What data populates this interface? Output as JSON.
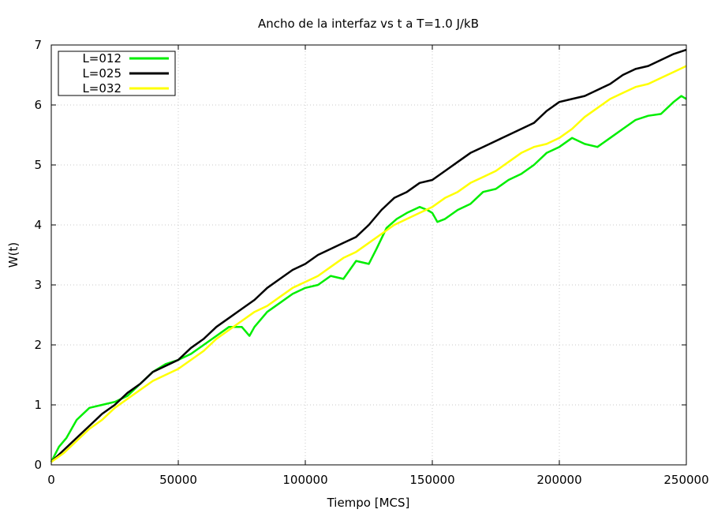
{
  "chart_data": {
    "type": "line",
    "title": "Ancho de la interfaz vs t a T=1.0 J/kB",
    "xlabel": "Tiempo [MCS]",
    "ylabel": "W(t)",
    "xlim": [
      0,
      250000
    ],
    "ylim": [
      0,
      7
    ],
    "x_ticks": [
      0,
      50000,
      100000,
      150000,
      200000,
      250000
    ],
    "x_tick_labels": [
      "0",
      "50000",
      "100000",
      "150000",
      "200000",
      "250000"
    ],
    "y_ticks": [
      0,
      1,
      2,
      3,
      4,
      5,
      6,
      7
    ],
    "y_tick_labels": [
      "0",
      "1",
      "2",
      "3",
      "4",
      "5",
      "6",
      "7"
    ],
    "grid": true,
    "legend_position": "top-left",
    "series": [
      {
        "name": "L=012",
        "color": "#00ee00",
        "x": [
          0,
          3000,
          6000,
          10000,
          15000,
          20000,
          25000,
          30000,
          35000,
          40000,
          45000,
          50000,
          55000,
          60000,
          65000,
          70000,
          75000,
          78000,
          80000,
          85000,
          90000,
          95000,
          100000,
          105000,
          110000,
          115000,
          120000,
          125000,
          128000,
          132000,
          136000,
          140000,
          145000,
          148000,
          150000,
          152000,
          155000,
          160000,
          165000,
          170000,
          175000,
          180000,
          185000,
          190000,
          195000,
          200000,
          205000,
          210000,
          215000,
          220000,
          225000,
          230000,
          235000,
          240000,
          245000,
          248000,
          250000
        ],
        "y": [
          0.05,
          0.3,
          0.45,
          0.75,
          0.95,
          1.0,
          1.05,
          1.15,
          1.35,
          1.55,
          1.68,
          1.75,
          1.85,
          2.0,
          2.15,
          2.3,
          2.3,
          2.15,
          2.3,
          2.55,
          2.7,
          2.85,
          2.95,
          3.0,
          3.15,
          3.1,
          3.4,
          3.35,
          3.6,
          3.95,
          4.1,
          4.2,
          4.3,
          4.25,
          4.2,
          4.05,
          4.1,
          4.25,
          4.35,
          4.55,
          4.6,
          4.75,
          4.85,
          5.0,
          5.2,
          5.3,
          5.45,
          5.35,
          5.3,
          5.45,
          5.6,
          5.75,
          5.82,
          5.85,
          6.05,
          6.15,
          6.1
        ]
      },
      {
        "name": "L=025",
        "color": "#000000",
        "x": [
          0,
          5000,
          10000,
          15000,
          20000,
          25000,
          30000,
          35000,
          40000,
          45000,
          50000,
          55000,
          60000,
          65000,
          70000,
          75000,
          80000,
          85000,
          90000,
          95000,
          100000,
          105000,
          110000,
          115000,
          120000,
          125000,
          130000,
          135000,
          140000,
          145000,
          150000,
          155000,
          160000,
          165000,
          170000,
          175000,
          180000,
          185000,
          190000,
          195000,
          200000,
          205000,
          210000,
          215000,
          220000,
          225000,
          230000,
          235000,
          240000,
          245000,
          250000
        ],
        "y": [
          0.05,
          0.25,
          0.45,
          0.65,
          0.85,
          1.0,
          1.2,
          1.35,
          1.55,
          1.65,
          1.75,
          1.95,
          2.1,
          2.3,
          2.45,
          2.6,
          2.75,
          2.95,
          3.1,
          3.25,
          3.35,
          3.5,
          3.6,
          3.7,
          3.8,
          4.0,
          4.25,
          4.45,
          4.55,
          4.7,
          4.75,
          4.9,
          5.05,
          5.2,
          5.3,
          5.4,
          5.5,
          5.6,
          5.7,
          5.9,
          6.05,
          6.1,
          6.15,
          6.25,
          6.35,
          6.5,
          6.6,
          6.65,
          6.75,
          6.85,
          6.92
        ]
      },
      {
        "name": "L=032",
        "color": "#ffff00",
        "x": [
          0,
          5000,
          10000,
          15000,
          20000,
          25000,
          30000,
          35000,
          40000,
          45000,
          50000,
          55000,
          60000,
          65000,
          70000,
          75000,
          80000,
          85000,
          90000,
          95000,
          100000,
          105000,
          110000,
          115000,
          120000,
          125000,
          130000,
          135000,
          140000,
          145000,
          150000,
          155000,
          160000,
          165000,
          170000,
          175000,
          180000,
          185000,
          190000,
          195000,
          200000,
          205000,
          210000,
          215000,
          220000,
          225000,
          230000,
          235000,
          240000,
          245000,
          250000
        ],
        "y": [
          0.05,
          0.2,
          0.4,
          0.6,
          0.75,
          0.95,
          1.1,
          1.25,
          1.4,
          1.5,
          1.6,
          1.75,
          1.9,
          2.1,
          2.25,
          2.4,
          2.55,
          2.65,
          2.8,
          2.95,
          3.05,
          3.15,
          3.3,
          3.45,
          3.55,
          3.7,
          3.85,
          4.0,
          4.1,
          4.2,
          4.3,
          4.45,
          4.55,
          4.7,
          4.8,
          4.9,
          5.05,
          5.2,
          5.3,
          5.35,
          5.45,
          5.6,
          5.8,
          5.95,
          6.1,
          6.2,
          6.3,
          6.35,
          6.45,
          6.55,
          6.65
        ]
      }
    ]
  }
}
